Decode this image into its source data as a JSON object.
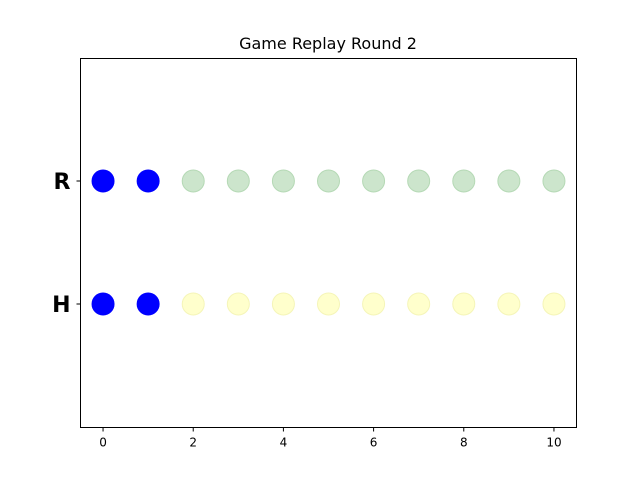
{
  "chart_data": {
    "type": "scatter",
    "title": "Game Replay Round 2",
    "xlabel": "",
    "ylabel": "",
    "xlim": [
      -0.5,
      10.5
    ],
    "xticks": [
      0,
      2,
      4,
      6,
      8,
      10
    ],
    "grid": false,
    "rows": [
      {
        "label": "R",
        "x": [
          0,
          1,
          2,
          3,
          4,
          5,
          6,
          7,
          8,
          9,
          10
        ],
        "point_colors": [
          "#0000ff",
          "#0000ff",
          "#cce5cc",
          "#cce5cc",
          "#cce5cc",
          "#cce5cc",
          "#cce5cc",
          "#cce5cc",
          "#cce5cc",
          "#cce5cc",
          "#cce5cc"
        ]
      },
      {
        "label": "H",
        "x": [
          0,
          1,
          2,
          3,
          4,
          5,
          6,
          7,
          8,
          9,
          10
        ],
        "point_colors": [
          "#0000ff",
          "#0000ff",
          "#ffffcc",
          "#ffffcc",
          "#ffffcc",
          "#ffffcc",
          "#ffffcc",
          "#ffffcc",
          "#ffffcc",
          "#ffffcc",
          "#ffffcc"
        ]
      }
    ]
  }
}
